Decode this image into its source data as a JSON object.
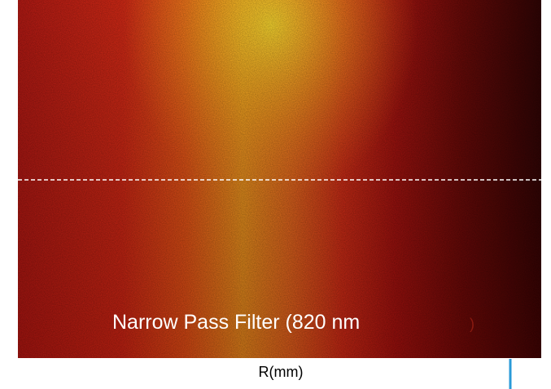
{
  "image": {
    "caption": "Narrow Pass Filter (820 nm",
    "caption_end": ")",
    "axis_label": "R(mm)"
  }
}
